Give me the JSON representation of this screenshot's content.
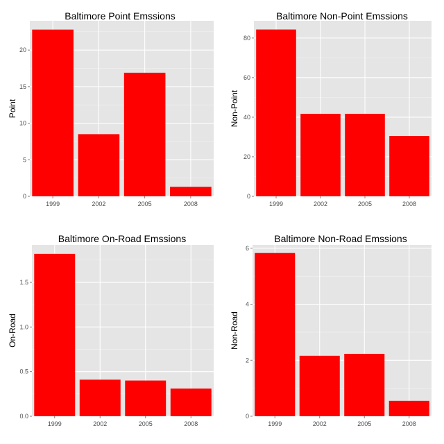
{
  "chart_data": [
    {
      "type": "bar",
      "title": "Baltimore Point Emssions",
      "xlabel": "",
      "ylabel": "Point",
      "categories": [
        "1999",
        "2002",
        "2005",
        "2008"
      ],
      "values": [
        22.8,
        8.5,
        16.9,
        1.3
      ],
      "ylim": [
        0,
        24.0
      ],
      "yticks": [
        0,
        5,
        10,
        15,
        20
      ],
      "ytick_labels": [
        "0",
        "5",
        "10",
        "15",
        "20"
      ],
      "bar_color": "#ff0000",
      "panel_color": "#e5e5e5",
      "grid": true,
      "legend": "none"
    },
    {
      "type": "bar",
      "title": "Baltimore Non-Point Emssions",
      "xlabel": "",
      "ylabel": "Non-Point",
      "categories": [
        "1999",
        "2002",
        "2005",
        "2008"
      ],
      "values": [
        84.3,
        41.7,
        41.7,
        30.5
      ],
      "ylim": [
        0,
        88.7
      ],
      "yticks": [
        0,
        20,
        40,
        60,
        80
      ],
      "ytick_labels": [
        "0",
        "20",
        "40",
        "60",
        "80"
      ],
      "bar_color": "#ff0000",
      "panel_color": "#e5e5e5",
      "grid": true,
      "legend": "none"
    },
    {
      "type": "bar",
      "title": "Baltimore On-Road Emssions",
      "xlabel": "",
      "ylabel": "On-Road",
      "categories": [
        "1999",
        "2002",
        "2005",
        "2008"
      ],
      "values": [
        1.82,
        0.41,
        0.4,
        0.31
      ],
      "ylim": [
        0,
        1.92
      ],
      "yticks": [
        0,
        0.5,
        1.0,
        1.5
      ],
      "ytick_labels": [
        "0.0",
        "0.5",
        "1.0",
        "1.5"
      ],
      "bar_color": "#ff0000",
      "panel_color": "#e5e5e5",
      "grid": true,
      "legend": "none"
    },
    {
      "type": "bar",
      "title": "Baltimore Non-Road Emssions",
      "xlabel": "",
      "ylabel": "Non-Road",
      "categories": [
        "1999",
        "2002",
        "2005",
        "2008"
      ],
      "values": [
        5.83,
        2.16,
        2.23,
        0.55
      ],
      "ylim": [
        0,
        6.12
      ],
      "yticks": [
        0,
        2,
        4,
        6
      ],
      "ytick_labels": [
        "0",
        "2",
        "4",
        "6"
      ],
      "bar_color": "#ff0000",
      "panel_color": "#e5e5e5",
      "grid": true,
      "legend": "none"
    }
  ]
}
